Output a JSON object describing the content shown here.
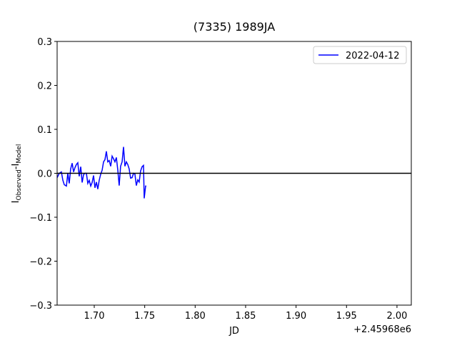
{
  "chart_data": {
    "type": "line",
    "title": "(7335) 1989JA",
    "xlabel": "JD",
    "x_offset_label": "+2.45968e6",
    "ylabel": [
      "I",
      "Observed",
      "-I",
      "Model"
    ],
    "x": [
      1.6632,
      1.6653,
      1.6674,
      1.6689,
      1.6703,
      1.6724,
      1.6738,
      1.6752,
      1.6766,
      1.6781,
      1.6795,
      1.6809,
      1.6823,
      1.6837,
      1.6851,
      1.6866,
      1.688,
      1.6894,
      1.6908,
      1.6922,
      1.6936,
      1.695,
      1.6965,
      1.6979,
      1.6993,
      1.7007,
      1.7021,
      1.7035,
      1.7049,
      1.7064,
      1.7078,
      1.7092,
      1.7106,
      1.712,
      1.7134,
      1.7148,
      1.7163,
      1.7177,
      1.7191,
      1.7205,
      1.7219,
      1.7233,
      1.7247,
      1.7261,
      1.7276,
      1.729,
      1.7304,
      1.7318,
      1.7332,
      1.7346,
      1.736,
      1.7375,
      1.7389,
      1.7403,
      1.7417,
      1.7431,
      1.7445,
      1.7459,
      1.7474,
      1.7488,
      1.7495,
      1.7509,
      1.7516
    ],
    "series": [
      {
        "name": "2022-04-12",
        "color": "#0000ff",
        "values": [
          -0.01,
          0,
          0.003,
          -0.016,
          -0.026,
          -0.029,
          0,
          -0.023,
          0.01,
          0.023,
          0.003,
          0.013,
          0.02,
          0.024,
          -0.007,
          0.015,
          -0.021,
          -0.003,
          0,
          0,
          -0.023,
          -0.016,
          -0.029,
          -0.021,
          -0.005,
          -0.033,
          -0.02,
          -0.036,
          -0.016,
          -0.002,
          0.007,
          0.026,
          0.031,
          0.05,
          0.026,
          0.029,
          0.016,
          0.039,
          0.033,
          0.026,
          0.036,
          0.008,
          -0.028,
          0.016,
          0.026,
          0.06,
          0.016,
          0.026,
          0.02,
          0.01,
          -0.011,
          -0.01,
          0,
          -0.002,
          -0.028,
          -0.015,
          -0.02,
          0.005,
          0.015,
          0.018,
          -0.057,
          -0.029,
          -0.029
        ]
      }
    ],
    "hline": 0,
    "xlim": [
      1.6632,
      2.0142
    ],
    "xticks": [
      {
        "value": 1.7,
        "label": "1.70"
      },
      {
        "value": 1.75,
        "label": "1.75"
      },
      {
        "value": 1.8,
        "label": "1.80"
      },
      {
        "value": 1.85,
        "label": "1.85"
      },
      {
        "value": 1.9,
        "label": "1.90"
      },
      {
        "value": 1.95,
        "label": "1.95"
      },
      {
        "value": 2.0,
        "label": "2.00"
      }
    ],
    "ylim": [
      -0.3,
      0.3
    ],
    "yticks": [
      {
        "value": -0.3,
        "label": "−0.3"
      },
      {
        "value": -0.2,
        "label": "−0.2"
      },
      {
        "value": -0.1,
        "label": "−0.1"
      },
      {
        "value": 0,
        "label": "0.0"
      },
      0.1,
      0.2,
      0.3
    ],
    "legend": "upper right"
  }
}
